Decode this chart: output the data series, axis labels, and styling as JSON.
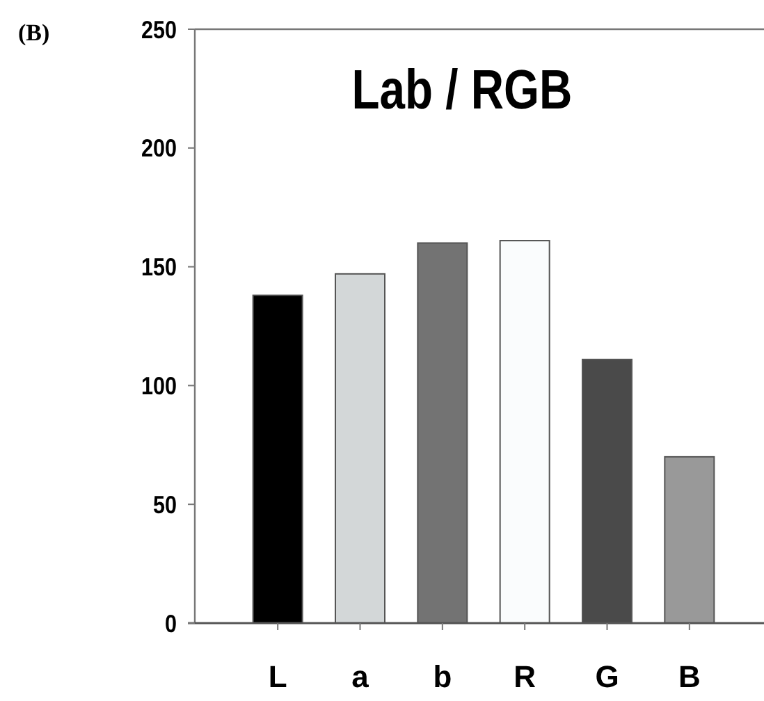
{
  "chart_data": {
    "type": "bar",
    "title": "Lab / RGB",
    "annotations": [
      "(B)"
    ],
    "categories": [
      "L",
      "a",
      "b",
      "R",
      "G",
      "B"
    ],
    "values": [
      138,
      147,
      160,
      161,
      111,
      70
    ],
    "colors": [
      "#000000",
      "#d3d7d8",
      "#737373",
      "#fafcfd",
      "#4a4a4a",
      "#999999"
    ],
    "ylim": [
      0,
      250
    ],
    "yticks": [
      0,
      50,
      100,
      150,
      200,
      250
    ]
  }
}
